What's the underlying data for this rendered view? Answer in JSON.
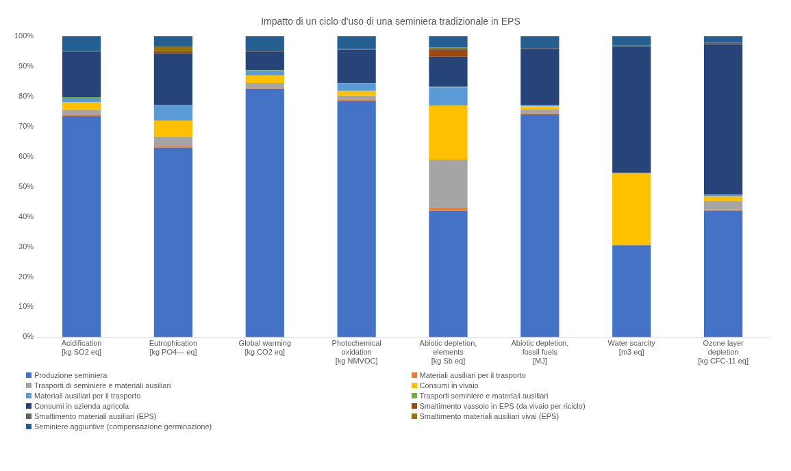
{
  "chart_data": {
    "type": "bar",
    "stacked": true,
    "title": "Impatto di un ciclo d'uso di una seminiera tradizionale in EPS",
    "categories": [
      "Acidification\n[kg SO2 eq]",
      "Eutrophication\n[kg PO4--- eq]",
      "Global warming\n[kg CO2 eq]",
      "Photochemical\noxidation\n[kg NMVOC]",
      "Abiotic depletion,\nelements\n[kg Sb eq]",
      "Abiotic depletion,\nfossil fuels\n[MJ]",
      "Water scarcity\n[m3 eq]",
      "Ozone layer\ndepletion\n[kg CFC-11 eq]"
    ],
    "ylim": [
      0,
      100
    ],
    "yticks": [
      {
        "value": 0,
        "label": "0%"
      },
      {
        "value": 10,
        "label": "10%"
      },
      {
        "value": 20,
        "label": "20%"
      },
      {
        "value": 30,
        "label": "30%"
      },
      {
        "value": 40,
        "label": "40%"
      },
      {
        "value": 50,
        "label": "50%"
      },
      {
        "value": 60,
        "label": "60%"
      },
      {
        "value": 70,
        "label": "70%"
      },
      {
        "value": 80,
        "label": "80%"
      },
      {
        "value": 90,
        "label": "90%"
      },
      {
        "value": 100,
        "label": "100%"
      }
    ],
    "grid": false,
    "legend": "bottom",
    "series": [
      {
        "name": "Produzione seminiera",
        "color": "#4472c4",
        "values": [
          73.5,
          63,
          82.5,
          78.5,
          42,
          74,
          30.5,
          42
        ]
      },
      {
        "name": "Materiali ausiliari per il trasporto",
        "color": "#ed7d31",
        "values": [
          0.3,
          0.5,
          0.3,
          0.3,
          1,
          0.2,
          0,
          0.3
        ]
      },
      {
        "name": "Trasporti di seminiere e materiali ausiliari",
        "color": "#a5a5a5",
        "values": [
          1.7,
          3,
          1.7,
          1.5,
          16,
          1.5,
          null,
          3
        ]
      },
      {
        "name": "Consumi in vivaio",
        "color": "#ffc000",
        "values": [
          2.5,
          5.5,
          2.5,
          1.5,
          18,
          1,
          24,
          1.5
        ]
      },
      {
        "name": "Materiali ausiliari per il trasporto",
        "color": "#5b9bd5",
        "values": [
          1.5,
          5,
          1.5,
          2.5,
          6,
          0.5,
          null,
          0.5
        ]
      },
      {
        "name": "Trasporti seminiere e materiali ausiliari",
        "color": "#70ad47",
        "values": [
          0.2,
          0.2,
          0.2,
          0.2,
          0.2,
          null,
          0,
          null
        ]
      },
      {
        "name": "Consumi in azienda agricola",
        "color": "#264478",
        "values": [
          15,
          17,
          6,
          11,
          10,
          18.5,
          42,
          50
        ]
      },
      {
        "name": "Smaltimento vassoio in EPS (da vivaio per riciclo)",
        "color": "#9e480e",
        "values": [
          0,
          0.5,
          0,
          0,
          2,
          0,
          0,
          0
        ]
      },
      {
        "name": "Smaltimento materiali ausiliari (EPS)",
        "color": "#636363",
        "values": [
          0.3,
          0.3,
          0.5,
          0.3,
          0.5,
          0.4,
          0.3,
          0.5
        ]
      },
      {
        "name": "Smaltimento materiali ausiliari vivai (EPS)",
        "color": "#997300",
        "values": [
          0,
          1.5,
          0,
          0,
          0.5,
          0,
          0,
          0
        ]
      },
      {
        "name": "Seminiere aggiuntive (compensazione germinazione)",
        "color": "#255e91",
        "values": [
          5,
          3.5,
          4.8,
          4.2,
          3.8,
          3.9,
          3.2,
          2.2
        ]
      }
    ]
  }
}
